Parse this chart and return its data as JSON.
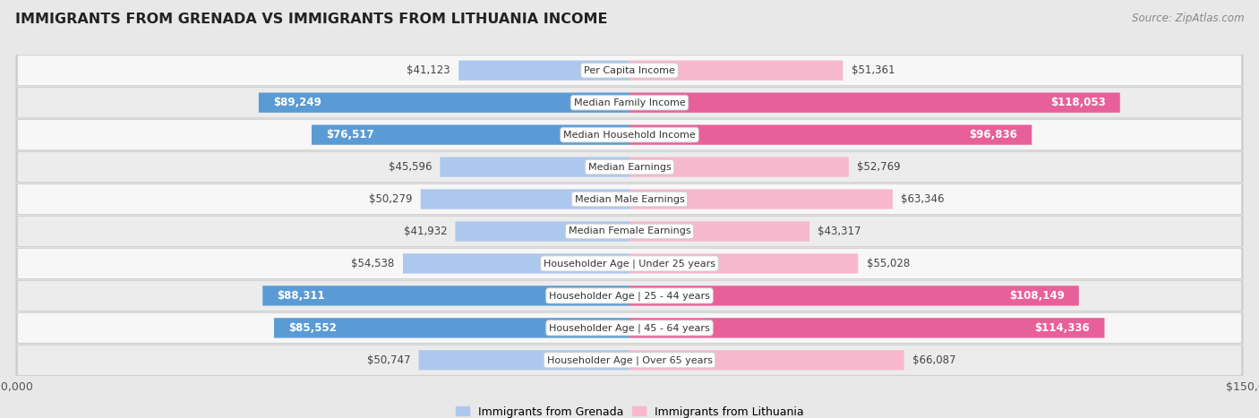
{
  "title": "IMMIGRANTS FROM GRENADA VS IMMIGRANTS FROM LITHUANIA INCOME",
  "source": "Source: ZipAtlas.com",
  "categories": [
    "Per Capita Income",
    "Median Family Income",
    "Median Household Income",
    "Median Earnings",
    "Median Male Earnings",
    "Median Female Earnings",
    "Householder Age | Under 25 years",
    "Householder Age | 25 - 44 years",
    "Householder Age | 45 - 64 years",
    "Householder Age | Over 65 years"
  ],
  "grenada_values": [
    41123,
    89249,
    76517,
    45596,
    50279,
    41932,
    54538,
    88311,
    85552,
    50747
  ],
  "lithuania_values": [
    51361,
    118053,
    96836,
    52769,
    63346,
    43317,
    55028,
    108149,
    114336,
    66087
  ],
  "grenada_color_light": "#adc8ee",
  "grenada_color_dark": "#5b9bd5",
  "lithuania_color_light": "#f7b8ce",
  "lithuania_color_dark": "#e8609a",
  "max_value": 150000,
  "legend_grenada": "Immigrants from Grenada",
  "legend_lithuania": "Immigrants from Lithuania",
  "bg_color": "#e8e8e8",
  "row_bg_light": "#f7f7f7",
  "row_bg_dark": "#ececec",
  "inside_label_threshold": 70000,
  "label_fontsize": 8.5,
  "cat_fontsize": 8.0
}
